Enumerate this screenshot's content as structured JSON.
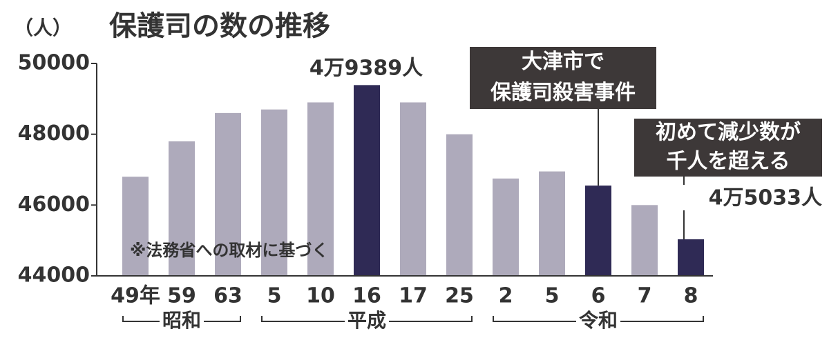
{
  "chart_data": {
    "type": "bar",
    "title": "保護司の数の推移",
    "y_unit": "（人）",
    "categories": [
      "49年",
      "59",
      "63",
      "5",
      "10",
      "16",
      "17",
      "25",
      "2",
      "5",
      "6",
      "7",
      "8"
    ],
    "values": [
      46800,
      47800,
      48600,
      48700,
      48900,
      49389,
      48900,
      48000,
      46750,
      46950,
      46550,
      46000,
      45033
    ],
    "value_labels": [
      null,
      null,
      null,
      null,
      null,
      "4万9389人",
      null,
      null,
      null,
      null,
      null,
      null,
      "4万5033人"
    ],
    "colors": [
      "#aeaabb",
      "#aeaabb",
      "#aeaabb",
      "#aeaabb",
      "#aeaabb",
      "#2f2a55",
      "#aeaabb",
      "#aeaabb",
      "#aeaabb",
      "#aeaabb",
      "#2f2a55",
      "#aeaabb",
      "#2f2a55"
    ],
    "eras": [
      "昭和",
      "平成",
      "令和"
    ],
    "ylim": [
      44000,
      50000
    ],
    "yticks": [
      44000,
      46000,
      48000,
      50000
    ],
    "grid": false,
    "annotations": [
      {
        "lines": [
          "大津市で",
          "保護司殺害事件"
        ],
        "category": 10
      },
      {
        "lines": [
          "初めて減少数が",
          "千人を超える"
        ],
        "category": 12
      }
    ],
    "note": "※法務省への取材に基づく"
  }
}
